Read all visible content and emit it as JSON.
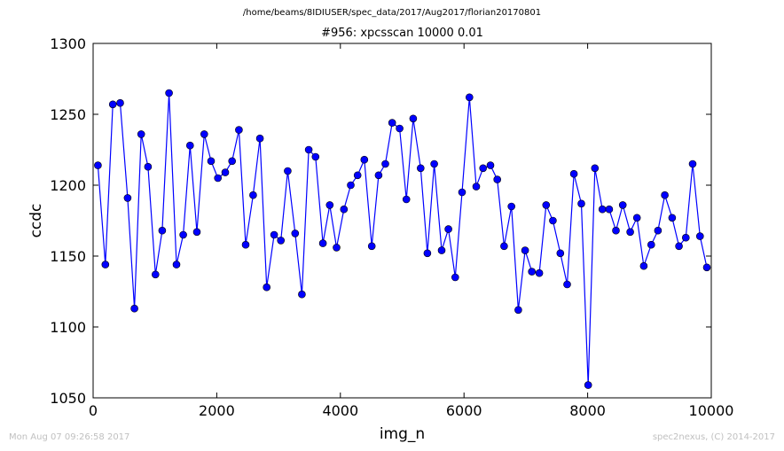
{
  "header": {
    "suptitle": "/home/beams/8IDIUSER/spec_data/2017/Aug2017/florian20170801"
  },
  "footer": {
    "timestamp": "Mon Aug 07 09:26:58 2017",
    "credit": "spec2nexus, (C) 2014-2017"
  },
  "chart_data": {
    "type": "line",
    "title": "#956: xpcsscan 10000 0.01",
    "xlabel": "img_n",
    "ylabel": "ccdc",
    "xlim": [
      0,
      10000
    ],
    "ylim": [
      1050,
      1300
    ],
    "xticks": [
      0,
      2000,
      4000,
      6000,
      8000,
      10000
    ],
    "yticks": [
      1050,
      1100,
      1150,
      1200,
      1250,
      1300
    ],
    "grid": false,
    "color": "#0000ff",
    "marker": "circle",
    "series": [
      {
        "x": [
          78,
          198,
          318,
          438,
          558,
          668,
          778,
          888,
          1008,
          1118,
          1228,
          1348,
          1458,
          1568,
          1678,
          1798,
          1908,
          2018,
          2138,
          2248,
          2358,
          2468,
          2588,
          2698,
          2808,
          2928,
          3038,
          3148,
          3268,
          3378,
          3488,
          3598,
          3718,
          3828,
          3938,
          4058,
          4168,
          4278,
          4388,
          4508,
          4618,
          4728,
          4838,
          4958,
          5068,
          5178,
          5298,
          5408,
          5518,
          5638,
          5748,
          5858,
          5968,
          6088,
          6198,
          6308,
          6428,
          6538,
          6648,
          6768,
          6878,
          6988,
          7098,
          7218,
          7328,
          7438,
          7558,
          7668,
          7778,
          7898,
          8008,
          8118,
          8238,
          8348,
          8458,
          8568,
          8688,
          8798,
          8908,
          9028,
          9138,
          9248,
          9368,
          9478,
          9588,
          9698,
          9818,
          9928
        ],
        "y": [
          1214,
          1144,
          1257,
          1258,
          1191,
          1113,
          1236,
          1213,
          1137,
          1168,
          1265,
          1144,
          1165,
          1228,
          1167,
          1236,
          1217,
          1205,
          1209,
          1217,
          1239,
          1158,
          1193,
          1233,
          1128,
          1165,
          1161,
          1210,
          1166,
          1123,
          1225,
          1220,
          1159,
          1186,
          1156,
          1183,
          1200,
          1207,
          1218,
          1157,
          1207,
          1215,
          1244,
          1240,
          1190,
          1247,
          1212,
          1152,
          1215,
          1154,
          1169,
          1135,
          1195,
          1262,
          1199,
          1212,
          1214,
          1204,
          1157,
          1185,
          1112,
          1154,
          1139,
          1138,
          1186,
          1175,
          1152,
          1130,
          1208,
          1187,
          1059,
          1212,
          1183,
          1183,
          1168,
          1186,
          1167,
          1177,
          1143,
          1158,
          1168,
          1193,
          1177,
          1157,
          1163,
          1215,
          1164,
          1142
        ]
      }
    ]
  }
}
